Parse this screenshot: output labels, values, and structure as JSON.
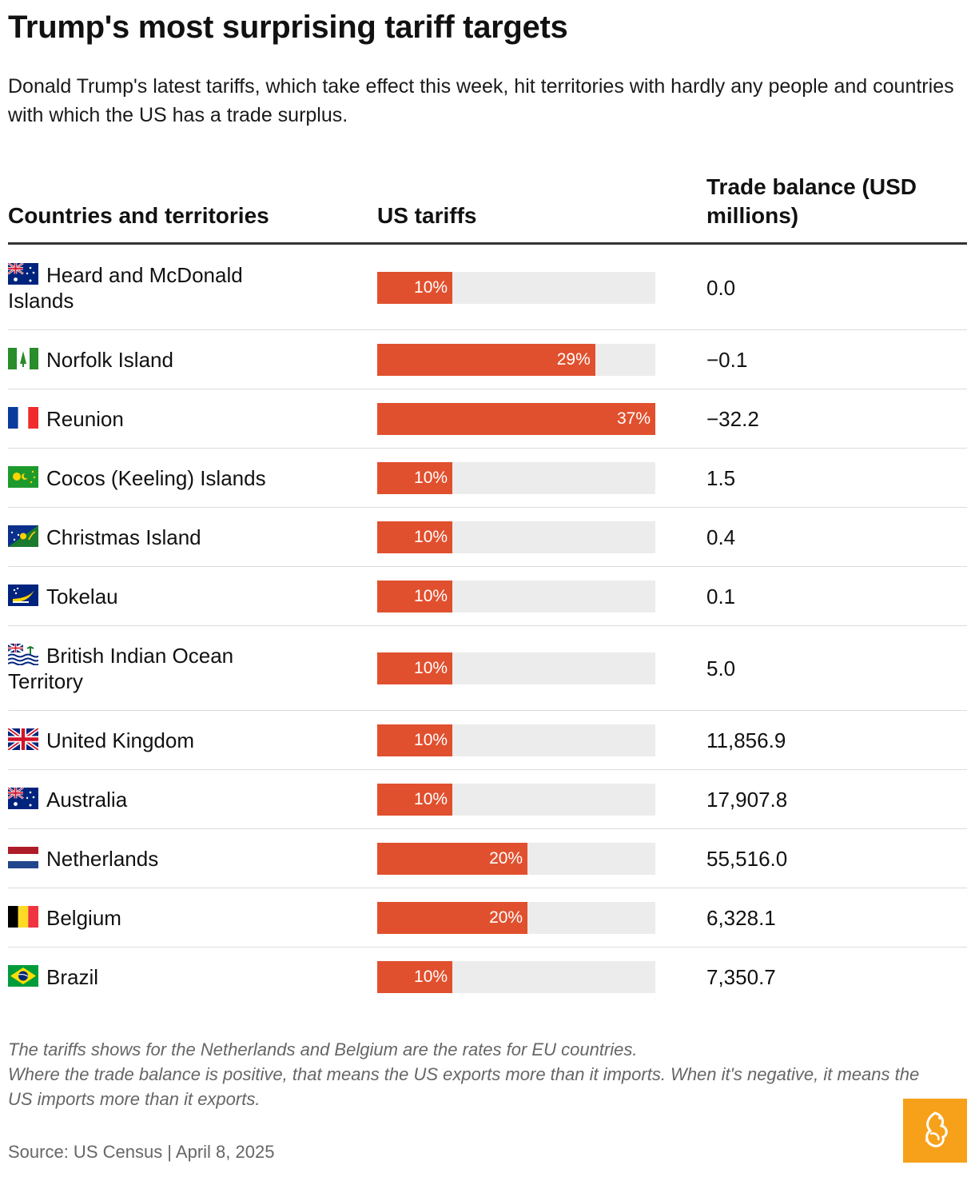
{
  "header": {
    "title": "Trump's most surprising tariff targets",
    "subtitle": "Donald Trump's latest tariffs, which take effect this week, hit territories with hardly any people and countries with which the US has a trade surplus."
  },
  "columns": {
    "country": "Countries and territories",
    "tariff": "US tariffs",
    "trade": "Trade balance (USD millions)"
  },
  "chart_data": {
    "type": "table",
    "title": "Trump's most surprising tariff targets",
    "bar_max": 37,
    "rows": [
      {
        "country": "Heard and McDonald Islands",
        "flag": "australia-flag",
        "tariff": 10,
        "tariff_label": "10%",
        "trade": "0.0"
      },
      {
        "country": "Norfolk Island",
        "flag": "norfolk-flag",
        "tariff": 29,
        "tariff_label": "29%",
        "trade": "−0.1"
      },
      {
        "country": "Reunion",
        "flag": "france-flag",
        "tariff": 37,
        "tariff_label": "37%",
        "trade": "−32.2"
      },
      {
        "country": "Cocos (Keeling) Islands",
        "flag": "cocos-flag",
        "tariff": 10,
        "tariff_label": "10%",
        "trade": "1.5"
      },
      {
        "country": "Christmas Island",
        "flag": "christmas-island-flag",
        "tariff": 10,
        "tariff_label": "10%",
        "trade": "0.4"
      },
      {
        "country": "Tokelau",
        "flag": "tokelau-flag",
        "tariff": 10,
        "tariff_label": "10%",
        "trade": "0.1"
      },
      {
        "country": "British Indian Ocean Territory",
        "flag": "biot-flag",
        "tariff": 10,
        "tariff_label": "10%",
        "trade": "5.0"
      },
      {
        "country": "United Kingdom",
        "flag": "uk-flag",
        "tariff": 10,
        "tariff_label": "10%",
        "trade": "11,856.9"
      },
      {
        "country": "Australia",
        "flag": "australia-flag",
        "tariff": 10,
        "tariff_label": "10%",
        "trade": "17,907.8"
      },
      {
        "country": "Netherlands",
        "flag": "netherlands-flag",
        "tariff": 20,
        "tariff_label": "20%",
        "trade": "55,516.0"
      },
      {
        "country": "Belgium",
        "flag": "belgium-flag",
        "tariff": 20,
        "tariff_label": "20%",
        "trade": "6,328.1"
      },
      {
        "country": "Brazil",
        "flag": "brazil-flag",
        "tariff": 10,
        "tariff_label": "10%",
        "trade": "7,350.7"
      }
    ]
  },
  "colors": {
    "bar": "#e1502e",
    "track": "#ececec",
    "logo": "#f7a11a"
  },
  "footer": {
    "note1": "The tariffs shows for the Netherlands and Belgium are the rates for EU countries.",
    "note2": "Where the trade balance is positive, that means the US exports more than it imports. When it's negative, it means the US imports more than it exports.",
    "source": "Source: US Census | April 8, 2025"
  }
}
